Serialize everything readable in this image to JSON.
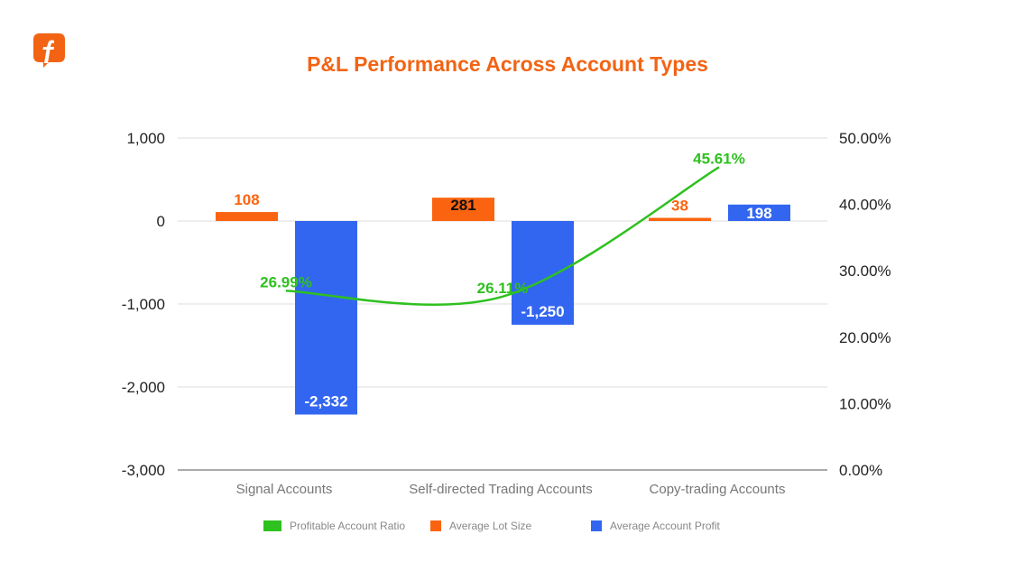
{
  "chart_data": {
    "type": "bar+line",
    "title": "P&L Performance Across Account Types",
    "categories": [
      "Signal Accounts",
      "Self-directed Trading Accounts",
      "Copy-trading Accounts"
    ],
    "series": [
      {
        "name": "Profitable Account Ratio",
        "type": "line",
        "axis": "right",
        "color": "#2ec11f",
        "values": [
          26.99,
          26.11,
          45.61
        ],
        "labels": [
          "26.99%",
          "26.11%",
          "45.61%"
        ]
      },
      {
        "name": "Average Lot Size",
        "type": "bar",
        "axis": "left",
        "color": "#fa6410",
        "values": [
          108,
          281,
          38
        ],
        "labels": [
          "108",
          "281",
          "38"
        ]
      },
      {
        "name": "Average Account Profit",
        "type": "bar",
        "axis": "left",
        "color": "#3366f0",
        "values": [
          -2332,
          -1250,
          198
        ],
        "labels": [
          "-2,332",
          "-1,250",
          "198"
        ]
      }
    ],
    "left_axis": {
      "ylim": [
        -3000,
        1000
      ],
      "ticks": [
        "1,000",
        "0",
        "-1,000",
        "-2,000",
        "-3,000"
      ],
      "tick_values": [
        1000,
        0,
        -1000,
        -2000,
        -3000
      ]
    },
    "right_axis": {
      "ylim": [
        0,
        50
      ],
      "ticks": [
        "50.00%",
        "40.00%",
        "30.00%",
        "20.00%",
        "10.00%",
        "0.00%"
      ],
      "tick_values": [
        50,
        40,
        30,
        20,
        10,
        0
      ]
    },
    "grid": true,
    "legend_position": "bottom"
  }
}
